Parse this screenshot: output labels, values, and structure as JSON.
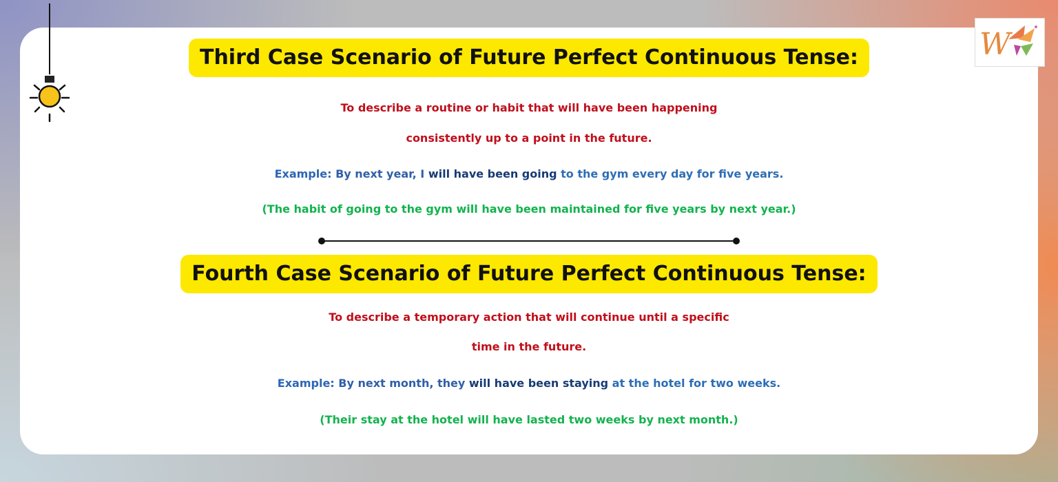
{
  "brand_logo": {
    "letter": "W",
    "icon": "wheel-logo-icon"
  },
  "decor": {
    "bulb_icon": "light-bulb-icon",
    "divider_icon": "line-divider"
  },
  "colors": {
    "heading_highlight": "#fde800",
    "description": "#c00f1b",
    "example_label": "#2c66b4",
    "example_verb": "#173b75",
    "explanation": "#12b34d"
  },
  "section3": {
    "heading": "Third Case Scenario of Future Perfect Continuous Tense:",
    "desc_line1": "To describe a routine or habit that will have been happening",
    "desc_line2": "consistently up to a point in the future.",
    "example": {
      "label": "Example: ",
      "part1": "By next year, I ",
      "verb": "will have been going",
      "part2": " to the gym every day for five years."
    },
    "explanation": "(The habit of going to the gym will have been maintained for five years by next year.)"
  },
  "section4": {
    "heading": "Fourth Case Scenario of Future Perfect Continuous Tense:",
    "desc_line1": "To describe a temporary action that will continue until a specific",
    "desc_line2": "time in the future.",
    "example": {
      "label": "Example: ",
      "part1": "By next month, they ",
      "verb": "will have been staying",
      "part2": " at the hotel for two weeks."
    },
    "explanation": "(Their stay at the hotel will have lasted two weeks by next month.)"
  }
}
